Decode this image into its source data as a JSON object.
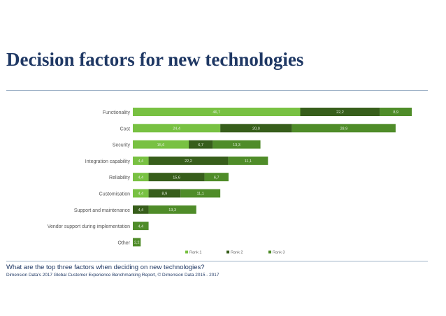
{
  "title": "Decision factors for new technologies",
  "footer": {
    "question": "What are the top three factors when deciding on new technologies?",
    "source": "Dimension Data’s 2017 Global Customer Experience Benchmarking Report, © Dimension Data 2015 - 2017"
  },
  "colors": {
    "rank1": "#78c142",
    "rank2": "#375e1b",
    "rank3": "#4f8c29"
  },
  "chart_data": {
    "type": "bar",
    "orientation": "horizontal",
    "stacked": true,
    "categories": [
      "Functionality",
      "Cost",
      "Security",
      "Integration capability",
      "Reliability",
      "Customisation",
      "Support and maintenance",
      "Vendor support during implementation",
      "Other"
    ],
    "series": [
      {
        "name": "Rank 1",
        "values": [
          46.7,
          24.4,
          15.6,
          4.4,
          4.4,
          4.4,
          null,
          null,
          null
        ],
        "labels": [
          "46,7",
          "24,4",
          "15,6",
          "4,4",
          "4,4",
          "4,4",
          "",
          "",
          ""
        ]
      },
      {
        "name": "Rank 2",
        "values": [
          22.2,
          20.0,
          6.7,
          22.2,
          15.6,
          8.9,
          4.4,
          null,
          null
        ],
        "labels": [
          "22,2",
          "20,0",
          "6,7",
          "22,2",
          "15,6",
          "8,9",
          "4,4",
          "",
          ""
        ]
      },
      {
        "name": "Rank 3",
        "values": [
          8.9,
          28.9,
          13.3,
          11.1,
          6.7,
          11.1,
          13.3,
          4.4,
          2.2
        ],
        "labels": [
          "8,9",
          "28,9",
          "13,3",
          "11,1",
          "6,7",
          "11,1",
          "13,3",
          "4,4",
          "2,2"
        ]
      }
    ],
    "legend_position": "bottom",
    "grid": false,
    "xlim": [
      0,
      80
    ]
  }
}
